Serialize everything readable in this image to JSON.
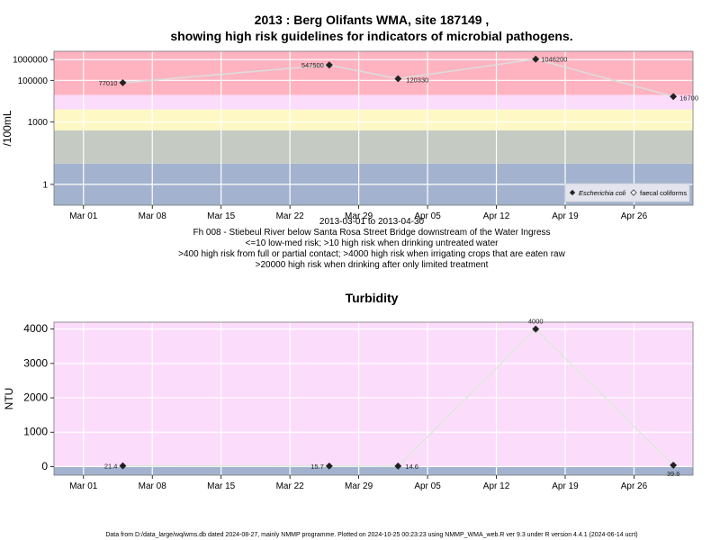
{
  "page": {
    "title_line1": "2013 : Berg Olifants WMA, site 187149 ,",
    "title_line2": "showing high risk guidelines for indicators of microbial pathogens.",
    "date_range": "2013-03-01 to 2013-04-30",
    "site_description": "Fh 008 - Stiebeul River below Santa Rosa Street Bridge downstream of the Water Ingress",
    "guidelines": [
      "<=10 low-med risk; >10 high risk when drinking untreated water",
      ">400 high risk from full or partial contact; >4000 high risk when irrigating crops that are eaten raw",
      ">20000 high risk when drinking after only limited treatment"
    ],
    "footer": "Data from D:/data_large/wq/wms.db dated 2024-08-27, mainly NMMP programme. Plotted on 2024-10-25 00:23:23 using NMMP_WMA_web.R ver 9.3 under R version 4.4.1 (2024-06-14 ucrt)"
  },
  "chart_data": [
    {
      "type": "line",
      "ylabel": "/100mL",
      "yscale": "log",
      "x_ticks": [
        "Mar 01",
        "Mar 08",
        "Mar 15",
        "Mar 22",
        "Mar 29",
        "Apr 05",
        "Apr 12",
        "Apr 19",
        "Apr 26"
      ],
      "y_ticks": [
        "1",
        "1000",
        "100000",
        "1000000"
      ],
      "y_tick_values": [
        1,
        1000,
        100000,
        1000000
      ],
      "ylim": [
        0.1,
        2500000
      ],
      "xlim": [
        "2013-02-26",
        "2013-05-02"
      ],
      "risk_bands": [
        {
          "from": 0.1,
          "to": 10,
          "color": "#a3b3cf"
        },
        {
          "from": 10,
          "to": 400,
          "color": "#c5cbc3"
        },
        {
          "from": 400,
          "to": 4000,
          "color": "#fef9c4"
        },
        {
          "from": 4000,
          "to": 20000,
          "color": "#fcdcfb"
        },
        {
          "from": 20000,
          "to": 2500000,
          "color": "#ffb3c0"
        }
      ],
      "legend": {
        "position": "bottom-right",
        "entries": [
          "Escherichia coli",
          "faecal coliforms"
        ]
      },
      "series": [
        {
          "name": "Escherichia coli",
          "x": [
            "2013-03-05",
            "2013-03-26",
            "2013-04-02",
            "2013-04-16",
            "2013-04-30"
          ],
          "y": [
            77010,
            547500,
            120330,
            1046200,
            16700
          ],
          "labels": [
            "77010",
            "547500",
            "120330",
            "1046200",
            "16700"
          ]
        }
      ]
    },
    {
      "type": "line",
      "title": "Turbidity",
      "ylabel": "NTU",
      "yscale": "linear",
      "x_ticks": [
        "Mar 01",
        "Mar 08",
        "Mar 15",
        "Mar 22",
        "Mar 29",
        "Apr 05",
        "Apr 12",
        "Apr 19",
        "Apr 26"
      ],
      "y_ticks": [
        "0",
        "1000",
        "2000",
        "3000",
        "4000"
      ],
      "y_tick_values": [
        0,
        1000,
        2000,
        3000,
        4000
      ],
      "ylim": [
        -250,
        4200
      ],
      "xlim": [
        "2013-02-26",
        "2013-05-02"
      ],
      "risk_bands": [
        {
          "from": -250,
          "to": 0,
          "color": "#a3b3cf"
        },
        {
          "from": 0,
          "to": 4200,
          "color": "#fcdcfb"
        }
      ],
      "series": [
        {
          "name": "Turbidity",
          "x": [
            "2013-03-05",
            "2013-03-26",
            "2013-04-02",
            "2013-04-16",
            "2013-04-30"
          ],
          "y": [
            21.4,
            15.7,
            14.6,
            4000,
            39.6
          ],
          "labels": [
            "21.4",
            "15.7",
            "14.6",
            "4000",
            "39.6"
          ]
        }
      ]
    }
  ]
}
